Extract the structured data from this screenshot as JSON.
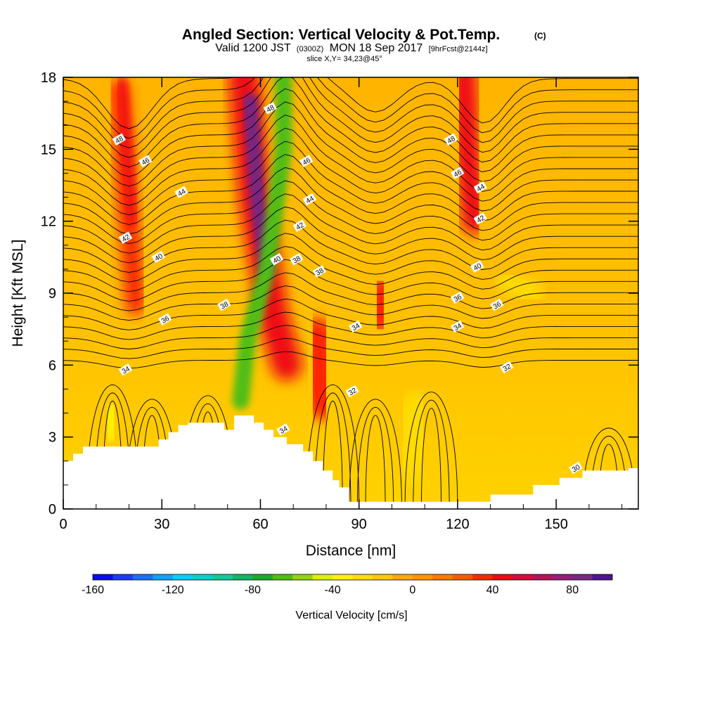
{
  "header": {
    "title": "Angled Section: Vertical Velocity & Pot.Temp.",
    "copyright": "(C)",
    "valid_prefix": "Valid 1200 JST",
    "valid_utc": "(0300Z)",
    "valid_date": "MON 18 Sep 2017",
    "forecast": "[9hrFcst@2144z]",
    "slice": "slice X,Y= 34,23@45°"
  },
  "colors": {
    "terrain": "#ffffff",
    "contour": "#000000",
    "frame": "#000000"
  },
  "chart_data": {
    "type": "heatmap",
    "xlabel": "Distance [nm]",
    "ylabel": "Height [Kft MSL]",
    "xlim": [
      0,
      175
    ],
    "ylim": [
      0,
      18
    ],
    "x_ticks": [
      0,
      30,
      60,
      90,
      120,
      150
    ],
    "y_ticks": [
      0,
      3,
      6,
      9,
      12,
      15,
      18
    ],
    "colorbar": {
      "label": "Vertical Velocity [cm/s]",
      "min": -160,
      "max": 100,
      "step": 10,
      "tick_values": [
        -160,
        -120,
        -80,
        -40,
        0,
        40,
        80
      ],
      "colors": [
        "#0a0af0",
        "#1e3cf5",
        "#1e6ef5",
        "#14a0f5",
        "#00d2f5",
        "#00d2c8",
        "#14c896",
        "#14b464",
        "#1eaa28",
        "#50be14",
        "#96d214",
        "#dcf000",
        "#fff000",
        "#ffdc00",
        "#ffc800",
        "#ffaa00",
        "#ff9600",
        "#ff7800",
        "#ff5a00",
        "#ff2800",
        "#f00a14",
        "#dc0a3c",
        "#b4145a",
        "#961e78",
        "#782882",
        "#50148c"
      ]
    },
    "theta_contour_labels": [
      {
        "x": 17,
        "y": 15.4,
        "value": "48"
      },
      {
        "x": 25,
        "y": 14.5,
        "value": "46"
      },
      {
        "x": 36,
        "y": 13.2,
        "value": "44"
      },
      {
        "x": 19,
        "y": 11.3,
        "value": "42"
      },
      {
        "x": 29,
        "y": 10.5,
        "value": "40"
      },
      {
        "x": 31,
        "y": 7.9,
        "value": "36"
      },
      {
        "x": 19,
        "y": 5.8,
        "value": "34"
      },
      {
        "x": 49,
        "y": 8.5,
        "value": "38"
      },
      {
        "x": 63,
        "y": 16.7,
        "value": "48"
      },
      {
        "x": 74,
        "y": 14.5,
        "value": "46"
      },
      {
        "x": 75,
        "y": 12.9,
        "value": "44"
      },
      {
        "x": 72,
        "y": 11.8,
        "value": "42"
      },
      {
        "x": 65,
        "y": 10.4,
        "value": "40"
      },
      {
        "x": 71,
        "y": 10.4,
        "value": "38"
      },
      {
        "x": 78,
        "y": 9.9,
        "value": "38"
      },
      {
        "x": 89,
        "y": 7.6,
        "value": "34"
      },
      {
        "x": 88,
        "y": 4.9,
        "value": "32"
      },
      {
        "x": 67,
        "y": 3.3,
        "value": "34"
      },
      {
        "x": 118,
        "y": 15.4,
        "value": "48"
      },
      {
        "x": 120,
        "y": 14.0,
        "value": "46"
      },
      {
        "x": 127,
        "y": 13.4,
        "value": "44"
      },
      {
        "x": 127,
        "y": 12.1,
        "value": "42"
      },
      {
        "x": 126,
        "y": 10.1,
        "value": "40"
      },
      {
        "x": 120,
        "y": 8.8,
        "value": "36"
      },
      {
        "x": 132,
        "y": 8.5,
        "value": "36"
      },
      {
        "x": 120,
        "y": 7.6,
        "value": "34"
      },
      {
        "x": 135,
        "y": 5.9,
        "value": "32"
      },
      {
        "x": 156,
        "y": 1.7,
        "value": "30"
      }
    ],
    "terrain_profile": [
      [
        0,
        2.0
      ],
      [
        3,
        2.0
      ],
      [
        3,
        2.3
      ],
      [
        6,
        2.3
      ],
      [
        6,
        2.6
      ],
      [
        29,
        2.6
      ],
      [
        29,
        2.9
      ],
      [
        32,
        2.9
      ],
      [
        32,
        3.2
      ],
      [
        35,
        3.2
      ],
      [
        35,
        3.5
      ],
      [
        38,
        3.5
      ],
      [
        38,
        3.6
      ],
      [
        49,
        3.6
      ],
      [
        49,
        3.3
      ],
      [
        52,
        3.3
      ],
      [
        52,
        3.9
      ],
      [
        58,
        3.9
      ],
      [
        58,
        3.6
      ],
      [
        61,
        3.6
      ],
      [
        61,
        3.3
      ],
      [
        64,
        3.3
      ],
      [
        64,
        3.0
      ],
      [
        68,
        3.0
      ],
      [
        68,
        2.7
      ],
      [
        73,
        2.7
      ],
      [
        73,
        2.4
      ],
      [
        76,
        2.4
      ],
      [
        76,
        2.0
      ],
      [
        79,
        2.0
      ],
      [
        79,
        1.6
      ],
      [
        82,
        1.6
      ],
      [
        82,
        1.2
      ],
      [
        84,
        1.2
      ],
      [
        84,
        0.9
      ],
      [
        87,
        0.9
      ],
      [
        87,
        0.3
      ],
      [
        130,
        0.3
      ],
      [
        130,
        0.6
      ],
      [
        143,
        0.6
      ],
      [
        143,
        1.0
      ],
      [
        151,
        1.0
      ],
      [
        151,
        1.3
      ],
      [
        158,
        1.3
      ],
      [
        158,
        1.6
      ],
      [
        172,
        1.6
      ],
      [
        172,
        1.7
      ],
      [
        175,
        1.7
      ]
    ]
  },
  "colorbar_tick_text": [
    "-160",
    "-120",
    "-80",
    "-40",
    "0",
    "40",
    "80"
  ]
}
